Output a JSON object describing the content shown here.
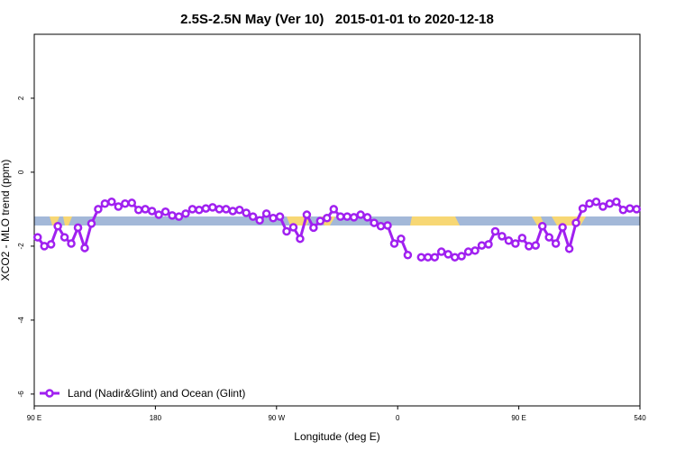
{
  "chart_data": {
    "type": "line",
    "title": "2.5S-2.5N May (Ver 10)   2015-01-01 to 2020-12-18",
    "x_label": "Longitude (deg E)",
    "y_label": "XCO2 - MLO trend (ppm)",
    "xlim": [
      90,
      540
    ],
    "ylim": [
      -6.32,
      3.73
    ],
    "xticks": [
      {
        "value": 90,
        "label": "90 E"
      },
      180,
      {
        "value": 270,
        "label": "90 W"
      },
      {
        "value": 360,
        "label": "0"
      },
      {
        "value": 450,
        "label": "90 E"
      },
      540
    ],
    "yticks": [
      -6,
      -4,
      -2,
      0,
      2
    ],
    "legend": "bottom-left",
    "x": [
      92.5,
      97.5,
      102.5,
      107.5,
      112.5,
      117.5,
      122.5,
      127.5,
      132.5,
      137.5,
      142.5,
      147.5,
      152.5,
      157.5,
      162.5,
      167.5,
      172.5,
      177.5,
      182.5,
      187.5,
      192.5,
      197.5,
      202.5,
      207.5,
      212.5,
      217.5,
      222.5,
      227.5,
      232.5,
      237.5,
      242.5,
      247.5,
      252.5,
      257.5,
      262.5,
      267.5,
      272.5,
      277.5,
      282.5,
      287.5,
      292.5,
      297.5,
      302.5,
      307.5,
      312.5,
      317.5,
      322.5,
      327.5,
      332.5,
      337.5,
      342.5,
      347.5,
      352.5,
      357.5,
      362.5,
      367.5,
      372.5,
      377.5,
      382.5,
      387.5,
      392.5,
      397.5,
      402.5,
      407.5,
      412.5,
      417.5,
      422.5,
      427.5,
      432.5,
      437.5,
      442.5,
      447.5,
      452.5,
      457.5,
      462.5,
      467.5,
      472.5,
      477.5,
      482.5,
      487.5,
      492.5,
      497.5,
      502.5,
      507.5,
      512.5,
      517.5,
      522.5,
      527.5,
      532.5,
      537.5
    ],
    "series": [
      {
        "name": "Land (Nadir&Glint) and Ocean (Glint)",
        "color": "#a020f0",
        "values": [
          -1.76,
          -2.0,
          -1.95,
          -1.46,
          -1.76,
          -1.93,
          -1.5,
          -2.05,
          -1.39,
          -1.0,
          -0.85,
          -0.8,
          -0.93,
          -0.85,
          -0.83,
          -1.02,
          -1.0,
          -1.05,
          -1.15,
          -1.07,
          -1.17,
          -1.2,
          -1.12,
          -1.0,
          -1.02,
          -0.98,
          -0.95,
          -1.0,
          -1.0,
          -1.05,
          -1.02,
          -1.1,
          -1.2,
          -1.3,
          -1.12,
          -1.24,
          -1.2,
          -1.6,
          -1.49,
          -1.8,
          -1.15,
          -1.5,
          -1.32,
          -1.24,
          -1.0,
          -1.2,
          -1.2,
          -1.22,
          -1.15,
          -1.22,
          -1.37,
          -1.46,
          -1.44,
          -1.93,
          -1.8,
          -2.24,
          null,
          -2.3,
          -2.3,
          -2.3,
          -2.15,
          -2.22,
          -2.3,
          -2.27,
          -2.15,
          -2.12,
          -1.98,
          -1.95,
          -1.6,
          -1.73,
          -1.85,
          -1.93,
          -1.78,
          -2.0,
          -1.98,
          -1.46,
          -1.76,
          -1.93,
          -1.49,
          -2.07,
          -1.37,
          -0.98,
          -0.85,
          -0.8,
          -0.93,
          -0.85,
          -0.8,
          -1.02,
          -0.98,
          -1.0
        ]
      }
    ]
  }
}
